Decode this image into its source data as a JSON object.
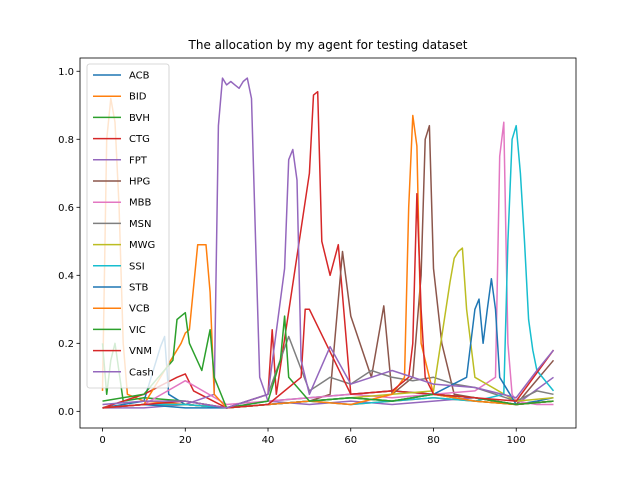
{
  "chart_data": {
    "type": "line",
    "title": "The allocation by my agent for testing dataset",
    "xlabel": "",
    "ylabel": "",
    "xlim": [
      -5.45,
      114.45
    ],
    "ylim": [
      -0.049,
      1.039
    ],
    "xticks": [
      0,
      20,
      40,
      60,
      80,
      100
    ],
    "yticks": [
      0.0,
      0.2,
      0.4,
      0.6,
      0.8,
      1.0
    ],
    "xtick_labels": [
      "0",
      "20",
      "40",
      "60",
      "80",
      "100"
    ],
    "ytick_labels": [
      "0.0",
      "0.2",
      "0.4",
      "0.6",
      "0.8",
      "1.0"
    ],
    "grid": false,
    "legend_position": "top-left",
    "series": [
      {
        "name": "ACB",
        "color": "#1f77b4",
        "x": [
          0,
          5,
          10,
          14,
          15,
          16,
          20,
          30,
          40,
          50,
          60,
          70,
          80,
          90,
          100,
          105,
          109
        ],
        "y": [
          0.01,
          0.02,
          0.03,
          0.19,
          0.22,
          0.05,
          0.02,
          0.01,
          0.03,
          0.04,
          0.05,
          0.06,
          0.05,
          0.04,
          0.02,
          0.03,
          0.04
        ]
      },
      {
        "name": "BID",
        "color": "#ff7f0e",
        "x": [
          0,
          1,
          2,
          3,
          4,
          5,
          6,
          10,
          20,
          30,
          40,
          50,
          60,
          70,
          80,
          90,
          100,
          109
        ],
        "y": [
          0.06,
          0.8,
          0.92,
          0.85,
          0.6,
          0.2,
          0.05,
          0.03,
          0.02,
          0.01,
          0.02,
          0.03,
          0.02,
          0.03,
          0.04,
          0.03,
          0.02,
          0.03
        ]
      },
      {
        "name": "BVH",
        "color": "#2ca02c",
        "x": [
          0,
          1,
          2,
          3,
          5,
          10,
          20,
          30,
          40,
          50,
          60,
          70,
          80,
          90,
          100,
          109
        ],
        "y": [
          0.2,
          0.05,
          0.15,
          0.2,
          0.03,
          0.04,
          0.03,
          0.01,
          0.02,
          0.03,
          0.04,
          0.03,
          0.05,
          0.03,
          0.02,
          0.03
        ]
      },
      {
        "name": "CTG",
        "color": "#d62728",
        "x": [
          0,
          10,
          18,
          20,
          22,
          30,
          40,
          41,
          42,
          50,
          51,
          52,
          53,
          55,
          57,
          60,
          70,
          80,
          90,
          100,
          109
        ],
        "y": [
          0.01,
          0.05,
          0.1,
          0.11,
          0.06,
          0.01,
          0.05,
          0.24,
          0.05,
          0.7,
          0.93,
          0.94,
          0.5,
          0.4,
          0.49,
          0.05,
          0.06,
          0.05,
          0.04,
          0.02,
          0.03
        ]
      },
      {
        "name": "FPT",
        "color": "#9467bd",
        "x": [
          0,
          10,
          20,
          27,
          28,
          29,
          30,
          31,
          32,
          33,
          34,
          35,
          36,
          37,
          38,
          40,
          50,
          60,
          70,
          80,
          90,
          100,
          109
        ],
        "y": [
          0.01,
          0.01,
          0.02,
          0.05,
          0.84,
          0.98,
          0.96,
          0.97,
          0.96,
          0.95,
          0.97,
          0.98,
          0.92,
          0.5,
          0.1,
          0.03,
          0.02,
          0.03,
          0.02,
          0.03,
          0.04,
          0.02,
          0.1
        ]
      },
      {
        "name": "HPG",
        "color": "#8c564b",
        "x": [
          0,
          10,
          20,
          30,
          40,
          50,
          55,
          58,
          60,
          65,
          68,
          70,
          75,
          77,
          78,
          79,
          80,
          82,
          85,
          90,
          100,
          109
        ],
        "y": [
          0.01,
          0.02,
          0.02,
          0.01,
          0.02,
          0.03,
          0.05,
          0.47,
          0.28,
          0.1,
          0.31,
          0.05,
          0.1,
          0.4,
          0.8,
          0.84,
          0.42,
          0.2,
          0.05,
          0.04,
          0.02,
          0.15
        ]
      },
      {
        "name": "MBB",
        "color": "#e377c2",
        "x": [
          0,
          10,
          20,
          30,
          40,
          50,
          60,
          70,
          80,
          90,
          95,
          96,
          97,
          98,
          99,
          100,
          105,
          109
        ],
        "y": [
          0.01,
          0.02,
          0.09,
          0.02,
          0.03,
          0.04,
          0.05,
          0.04,
          0.05,
          0.06,
          0.1,
          0.75,
          0.85,
          0.2,
          0.05,
          0.03,
          0.02,
          0.02
        ]
      },
      {
        "name": "MSN",
        "color": "#7f7f7f",
        "x": [
          0,
          10,
          20,
          30,
          40,
          45,
          50,
          55,
          60,
          65,
          70,
          75,
          80,
          85,
          90,
          95,
          100,
          105,
          109
        ],
        "y": [
          0.01,
          0.02,
          0.02,
          0.01,
          0.05,
          0.22,
          0.06,
          0.1,
          0.08,
          0.12,
          0.1,
          0.09,
          0.1,
          0.08,
          0.07,
          0.05,
          0.03,
          0.06,
          0.05
        ]
      },
      {
        "name": "MWG",
        "color": "#bcbd22",
        "x": [
          0,
          10,
          20,
          30,
          40,
          50,
          60,
          70,
          80,
          83,
          84,
          85,
          86,
          87,
          88,
          90,
          100,
          109
        ],
        "y": [
          0.01,
          0.02,
          0.02,
          0.01,
          0.02,
          0.03,
          0.04,
          0.05,
          0.06,
          0.3,
          0.38,
          0.45,
          0.47,
          0.48,
          0.3,
          0.1,
          0.03,
          0.04
        ]
      },
      {
        "name": "SSI",
        "color": "#17becf",
        "x": [
          0,
          10,
          20,
          30,
          40,
          50,
          60,
          70,
          80,
          90,
          97,
          98,
          99,
          100,
          101,
          102,
          103,
          104,
          105,
          109
        ],
        "y": [
          0.01,
          0.02,
          0.02,
          0.01,
          0.02,
          0.03,
          0.02,
          0.03,
          0.04,
          0.03,
          0.05,
          0.5,
          0.8,
          0.84,
          0.7,
          0.5,
          0.27,
          0.18,
          0.12,
          0.06
        ]
      },
      {
        "name": "STB",
        "color": "#1f77b4",
        "x": [
          0,
          10,
          20,
          30,
          40,
          50,
          60,
          70,
          80,
          88,
          90,
          91,
          92,
          93,
          94,
          95,
          96,
          100,
          109
        ],
        "y": [
          0.01,
          0.02,
          0.01,
          0.01,
          0.02,
          0.03,
          0.04,
          0.03,
          0.05,
          0.1,
          0.3,
          0.33,
          0.2,
          0.3,
          0.39,
          0.3,
          0.1,
          0.02,
          0.03
        ]
      },
      {
        "name": "VCB",
        "color": "#ff7f0e",
        "x": [
          0,
          10,
          19,
          20,
          21,
          23,
          24,
          25,
          26,
          27,
          30,
          40,
          50,
          60,
          70,
          73,
          74,
          75,
          76,
          77,
          80,
          90,
          100,
          109
        ],
        "y": [
          0.01,
          0.02,
          0.2,
          0.23,
          0.24,
          0.49,
          0.49,
          0.49,
          0.35,
          0.05,
          0.01,
          0.02,
          0.03,
          0.02,
          0.05,
          0.1,
          0.6,
          0.87,
          0.78,
          0.2,
          0.05,
          0.03,
          0.02,
          0.03
        ]
      },
      {
        "name": "VIC",
        "color": "#2ca02c",
        "x": [
          0,
          10,
          17,
          18,
          19,
          20,
          21,
          24,
          26,
          27,
          30,
          40,
          43,
          44,
          45,
          50,
          60,
          70,
          80,
          90,
          100,
          109
        ],
        "y": [
          0.03,
          0.05,
          0.15,
          0.27,
          0.28,
          0.29,
          0.2,
          0.12,
          0.24,
          0.1,
          0.01,
          0.03,
          0.15,
          0.28,
          0.1,
          0.03,
          0.04,
          0.03,
          0.05,
          0.04,
          0.02,
          0.03
        ]
      },
      {
        "name": "VNM",
        "color": "#d62728",
        "x": [
          0,
          10,
          20,
          30,
          40,
          48,
          49,
          50,
          60,
          70,
          74,
          75,
          76,
          77,
          78,
          80,
          90,
          100,
          109
        ],
        "y": [
          0.01,
          0.02,
          0.03,
          0.01,
          0.02,
          0.1,
          0.3,
          0.3,
          0.05,
          0.06,
          0.1,
          0.2,
          0.64,
          0.3,
          0.1,
          0.05,
          0.04,
          0.03,
          0.18
        ]
      },
      {
        "name": "Cash",
        "color": "#9467bd",
        "x": [
          0,
          10,
          20,
          30,
          40,
          44,
          45,
          46,
          47,
          48,
          50,
          55,
          60,
          65,
          70,
          80,
          90,
          100,
          105,
          109
        ],
        "y": [
          0.02,
          0.03,
          0.03,
          0.01,
          0.05,
          0.42,
          0.74,
          0.77,
          0.68,
          0.15,
          0.05,
          0.19,
          0.08,
          0.1,
          0.12,
          0.08,
          0.07,
          0.04,
          0.12,
          0.18
        ]
      }
    ]
  }
}
